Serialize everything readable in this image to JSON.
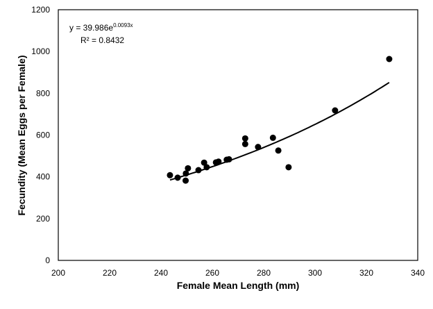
{
  "chart_data": {
    "type": "scatter",
    "title": "",
    "xlabel": "Female Mean Length (mm)",
    "ylabel": "Fecundity (Mean Eggs per Female)",
    "xlim": [
      200,
      340
    ],
    "ylim": [
      0,
      1200
    ],
    "xticks": [
      200,
      220,
      240,
      260,
      280,
      300,
      320,
      340
    ],
    "yticks": [
      0,
      200,
      400,
      600,
      800,
      1000,
      1200
    ],
    "grid": false,
    "legend": "none",
    "marker_color": "#000000",
    "points": [
      {
        "x": 243.5,
        "y": 408
      },
      {
        "x": 246.5,
        "y": 396
      },
      {
        "x": 249.6,
        "y": 382
      },
      {
        "x": 249.7,
        "y": 416
      },
      {
        "x": 250.5,
        "y": 441
      },
      {
        "x": 254.6,
        "y": 432
      },
      {
        "x": 256.8,
        "y": 468
      },
      {
        "x": 257.8,
        "y": 446
      },
      {
        "x": 261.4,
        "y": 469
      },
      {
        "x": 262.4,
        "y": 473
      },
      {
        "x": 265.6,
        "y": 482
      },
      {
        "x": 266.5,
        "y": 484
      },
      {
        "x": 272.8,
        "y": 584
      },
      {
        "x": 272.8,
        "y": 557
      },
      {
        "x": 277.8,
        "y": 543
      },
      {
        "x": 283.6,
        "y": 587
      },
      {
        "x": 285.7,
        "y": 526
      },
      {
        "x": 289.7,
        "y": 446
      },
      {
        "x": 307.8,
        "y": 718
      },
      {
        "x": 328.9,
        "y": 964
      }
    ],
    "trendline": {
      "type": "exponential",
      "a": 39.986,
      "b": 0.0093,
      "x_range": [
        243.5,
        328.9
      ],
      "equation_prefix": "y = 39.986e",
      "equation_exponent": "0.0093x",
      "r2_label": "R² = 0.8432"
    }
  }
}
